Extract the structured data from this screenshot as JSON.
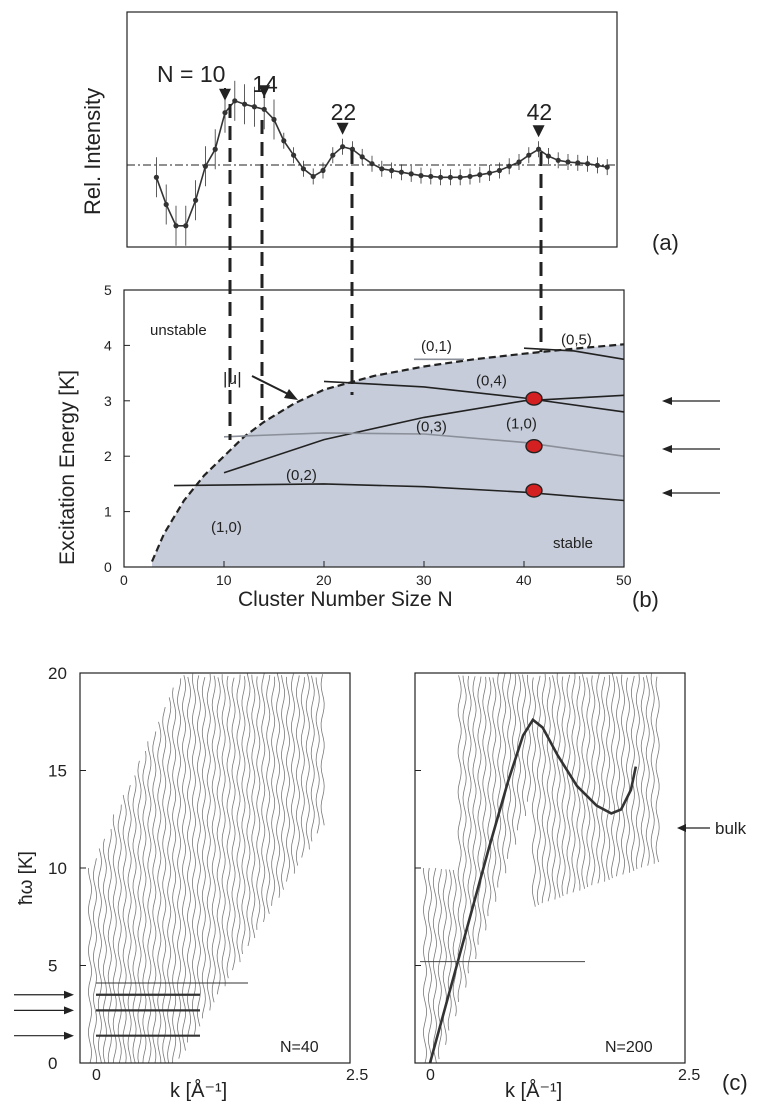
{
  "colors": {
    "axis": "#222222",
    "curve": "#333333",
    "stable_fill": "#c6ccd9",
    "marker": "#d42020",
    "spectra": "#7a7a7a"
  },
  "chart_data": [
    {
      "id": "a",
      "type": "line",
      "panel_label": "(a)",
      "ylabel": "Rel. Intensity",
      "xlim": [
        0,
        50
      ],
      "reference_line": "dash-dot",
      "series": [
        {
          "x": [
            3,
            4,
            5,
            6,
            7,
            8,
            9,
            10,
            11,
            12,
            13,
            14,
            15,
            16,
            17,
            18,
            19,
            20,
            21,
            22,
            23,
            24,
            25,
            26,
            27,
            28,
            29,
            30,
            31,
            32,
            33,
            34,
            35,
            36,
            37,
            38,
            39,
            40,
            41,
            42,
            43,
            44,
            45,
            46,
            47,
            48,
            49
          ],
          "y": [
            0.62,
            0.3,
            0.05,
            0.05,
            0.35,
            0.75,
            0.95,
            1.38,
            1.52,
            1.48,
            1.45,
            1.42,
            1.3,
            1.05,
            0.88,
            0.72,
            0.63,
            0.7,
            0.88,
            0.98,
            0.95,
            0.86,
            0.78,
            0.72,
            0.7,
            0.68,
            0.66,
            0.64,
            0.63,
            0.62,
            0.62,
            0.62,
            0.63,
            0.65,
            0.67,
            0.7,
            0.75,
            0.8,
            0.88,
            0.95,
            0.87,
            0.82,
            0.8,
            0.79,
            0.78,
            0.76,
            0.74
          ]
        }
      ],
      "annotations": [
        {
          "label": "N = 10",
          "x": 10
        },
        {
          "label": "14",
          "x": 14
        },
        {
          "label": "22",
          "x": 22
        },
        {
          "label": "42",
          "x": 42
        }
      ]
    },
    {
      "id": "b",
      "type": "line",
      "panel_label": "(b)",
      "xlabel": "Cluster Number Size N",
      "ylabel": "Excitation Energy [K]",
      "xlim": [
        0,
        50
      ],
      "ylim": [
        0,
        5
      ],
      "xticks": [
        0,
        10,
        20,
        30,
        40,
        50
      ],
      "yticks": [
        0,
        1,
        2,
        3,
        4,
        5
      ],
      "region_labels": [
        "unstable",
        "stable"
      ],
      "mu_label": "|μ|",
      "boundary": {
        "x": [
          2.8,
          4,
          6,
          8,
          10,
          12,
          14,
          17,
          20,
          25,
          30,
          35,
          40,
          45,
          50
        ],
        "y": [
          0.1,
          0.6,
          1.2,
          1.65,
          2.0,
          2.35,
          2.62,
          2.95,
          3.2,
          3.45,
          3.62,
          3.75,
          3.85,
          3.94,
          4.02
        ]
      },
      "mode_curves": [
        {
          "name": "(1,0)",
          "x": [
            10,
            20,
            30,
            40,
            50
          ],
          "y": [
            1.7,
            2.3,
            2.7,
            3.0,
            3.1
          ]
        },
        {
          "name": "(0,2)",
          "x": [
            5,
            20,
            30,
            40,
            50
          ],
          "y": [
            1.47,
            1.5,
            1.45,
            1.35,
            1.2
          ]
        },
        {
          "name": "(0,3)",
          "x": [
            10,
            20,
            30,
            40,
            50
          ],
          "y": [
            2.35,
            2.42,
            2.4,
            2.25,
            2.0
          ]
        },
        {
          "name": "(0,4)",
          "x": [
            20,
            30,
            40,
            50
          ],
          "y": [
            3.35,
            3.25,
            3.05,
            2.8
          ]
        },
        {
          "name": "(0,5)",
          "x": [
            40,
            45,
            50
          ],
          "y": [
            3.95,
            3.9,
            3.75
          ]
        },
        {
          "name": "(0,1)",
          "x": [
            29,
            34
          ],
          "y": [
            3.75,
            3.75
          ]
        }
      ],
      "curve_labels": [
        {
          "text": "(0,1)",
          "x": 31.5,
          "y": 3.9
        },
        {
          "text": "(0,5)",
          "x": 45.5,
          "y": 4.02
        },
        {
          "text": "(0,4)",
          "x": 37,
          "y": 3.28
        },
        {
          "text": "(1,0)",
          "x": 40,
          "y": 2.5
        },
        {
          "text": "(0,3)",
          "x": 31,
          "y": 2.45
        },
        {
          "text": "(0,2)",
          "x": 18,
          "y": 1.57
        },
        {
          "text": "(1,0)",
          "x": 10.5,
          "y": 0.63
        }
      ],
      "points": {
        "x": [
          41,
          41,
          41
        ],
        "y": [
          3.04,
          2.18,
          1.38
        ]
      }
    },
    {
      "id": "c",
      "type": "line",
      "panel_label": "(c)",
      "ylabel": "ħω [K]",
      "ylim": [
        0,
        20
      ],
      "yticks": [
        0,
        5,
        10,
        15,
        20
      ],
      "panels": [
        {
          "label": "N=40",
          "xlabel": "k [Å⁻¹]",
          "xlim": [
            0,
            2.5
          ],
          "xtick_labels": [
            "0",
            "2.5"
          ],
          "levels": [
            4.1,
            3.5,
            2.7,
            1.4
          ]
        },
        {
          "label": "N=200",
          "xlabel": "k [Å⁻¹]",
          "xlim": [
            0,
            2.5
          ],
          "xtick_labels": [
            "0",
            "2.5"
          ],
          "bulk_label": "bulk",
          "dispersion": {
            "x": [
              0,
              0.3,
              0.6,
              0.8,
              0.95,
              1.05,
              1.15,
              1.3,
              1.5,
              1.7,
              1.85,
              1.95,
              2.05,
              2.1
            ],
            "y": [
              0,
              5.5,
              11,
              14.5,
              16.8,
              17.6,
              17.2,
              15.8,
              14.2,
              13.2,
              12.8,
              13,
              14,
              15.2
            ]
          },
          "levels": [
            5.2
          ]
        }
      ]
    }
  ]
}
